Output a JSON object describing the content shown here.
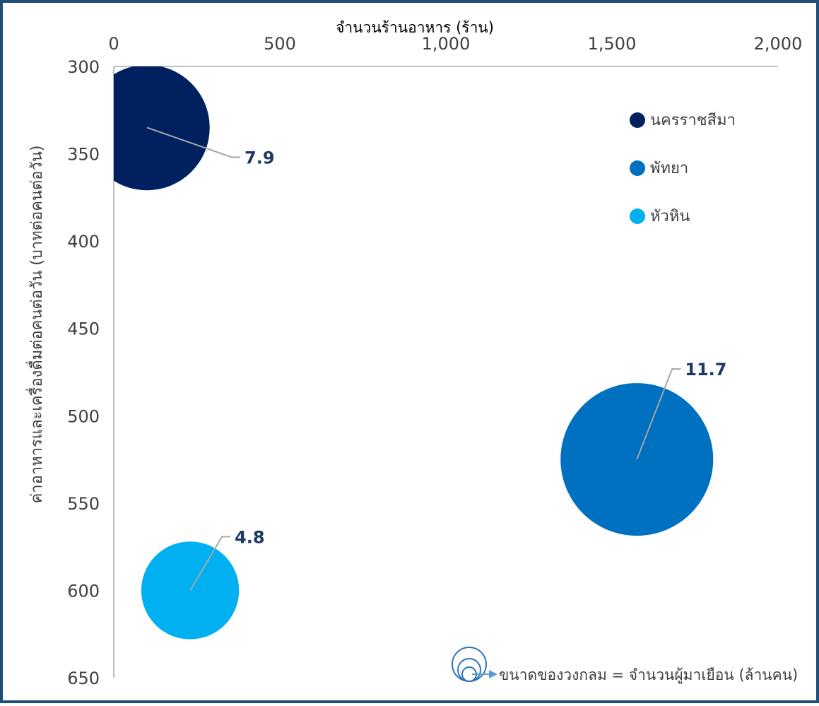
{
  "chart_data": {
    "type": "bubble",
    "title": "",
    "xlabel": "จำนวนร้านอาหาร (ร้าน)",
    "ylabel": "ค่าอาหารและเครื่องดื่มต่อคนต่อวัน (บาทต่อคนต่อวัน)",
    "xlim": [
      0,
      2000
    ],
    "ylim": [
      300,
      650
    ],
    "y_reversed": true,
    "x_ticks": [
      "0",
      "500",
      "1,000",
      "1,500",
      "2,000"
    ],
    "y_ticks": [
      "300",
      "350",
      "400",
      "450",
      "500",
      "550",
      "600",
      "650"
    ],
    "series": [
      {
        "name": "นครราชสีมา",
        "x": 100,
        "y": 335,
        "size": 7.9,
        "label": "7.9",
        "color": "#002060"
      },
      {
        "name": "พัทยา",
        "x": 1575,
        "y": 525,
        "size": 11.7,
        "label": "11.7",
        "color": "#0070c0"
      },
      {
        "name": "หัวหิน",
        "x": 230,
        "y": 600,
        "size": 4.8,
        "label": "4.8",
        "color": "#00b0f0"
      }
    ],
    "legend_position": "top-right",
    "grid": false,
    "size_note": "ขนาดของวงกลม = จำนวนผู้มาเยือน (ล้านคน)"
  }
}
